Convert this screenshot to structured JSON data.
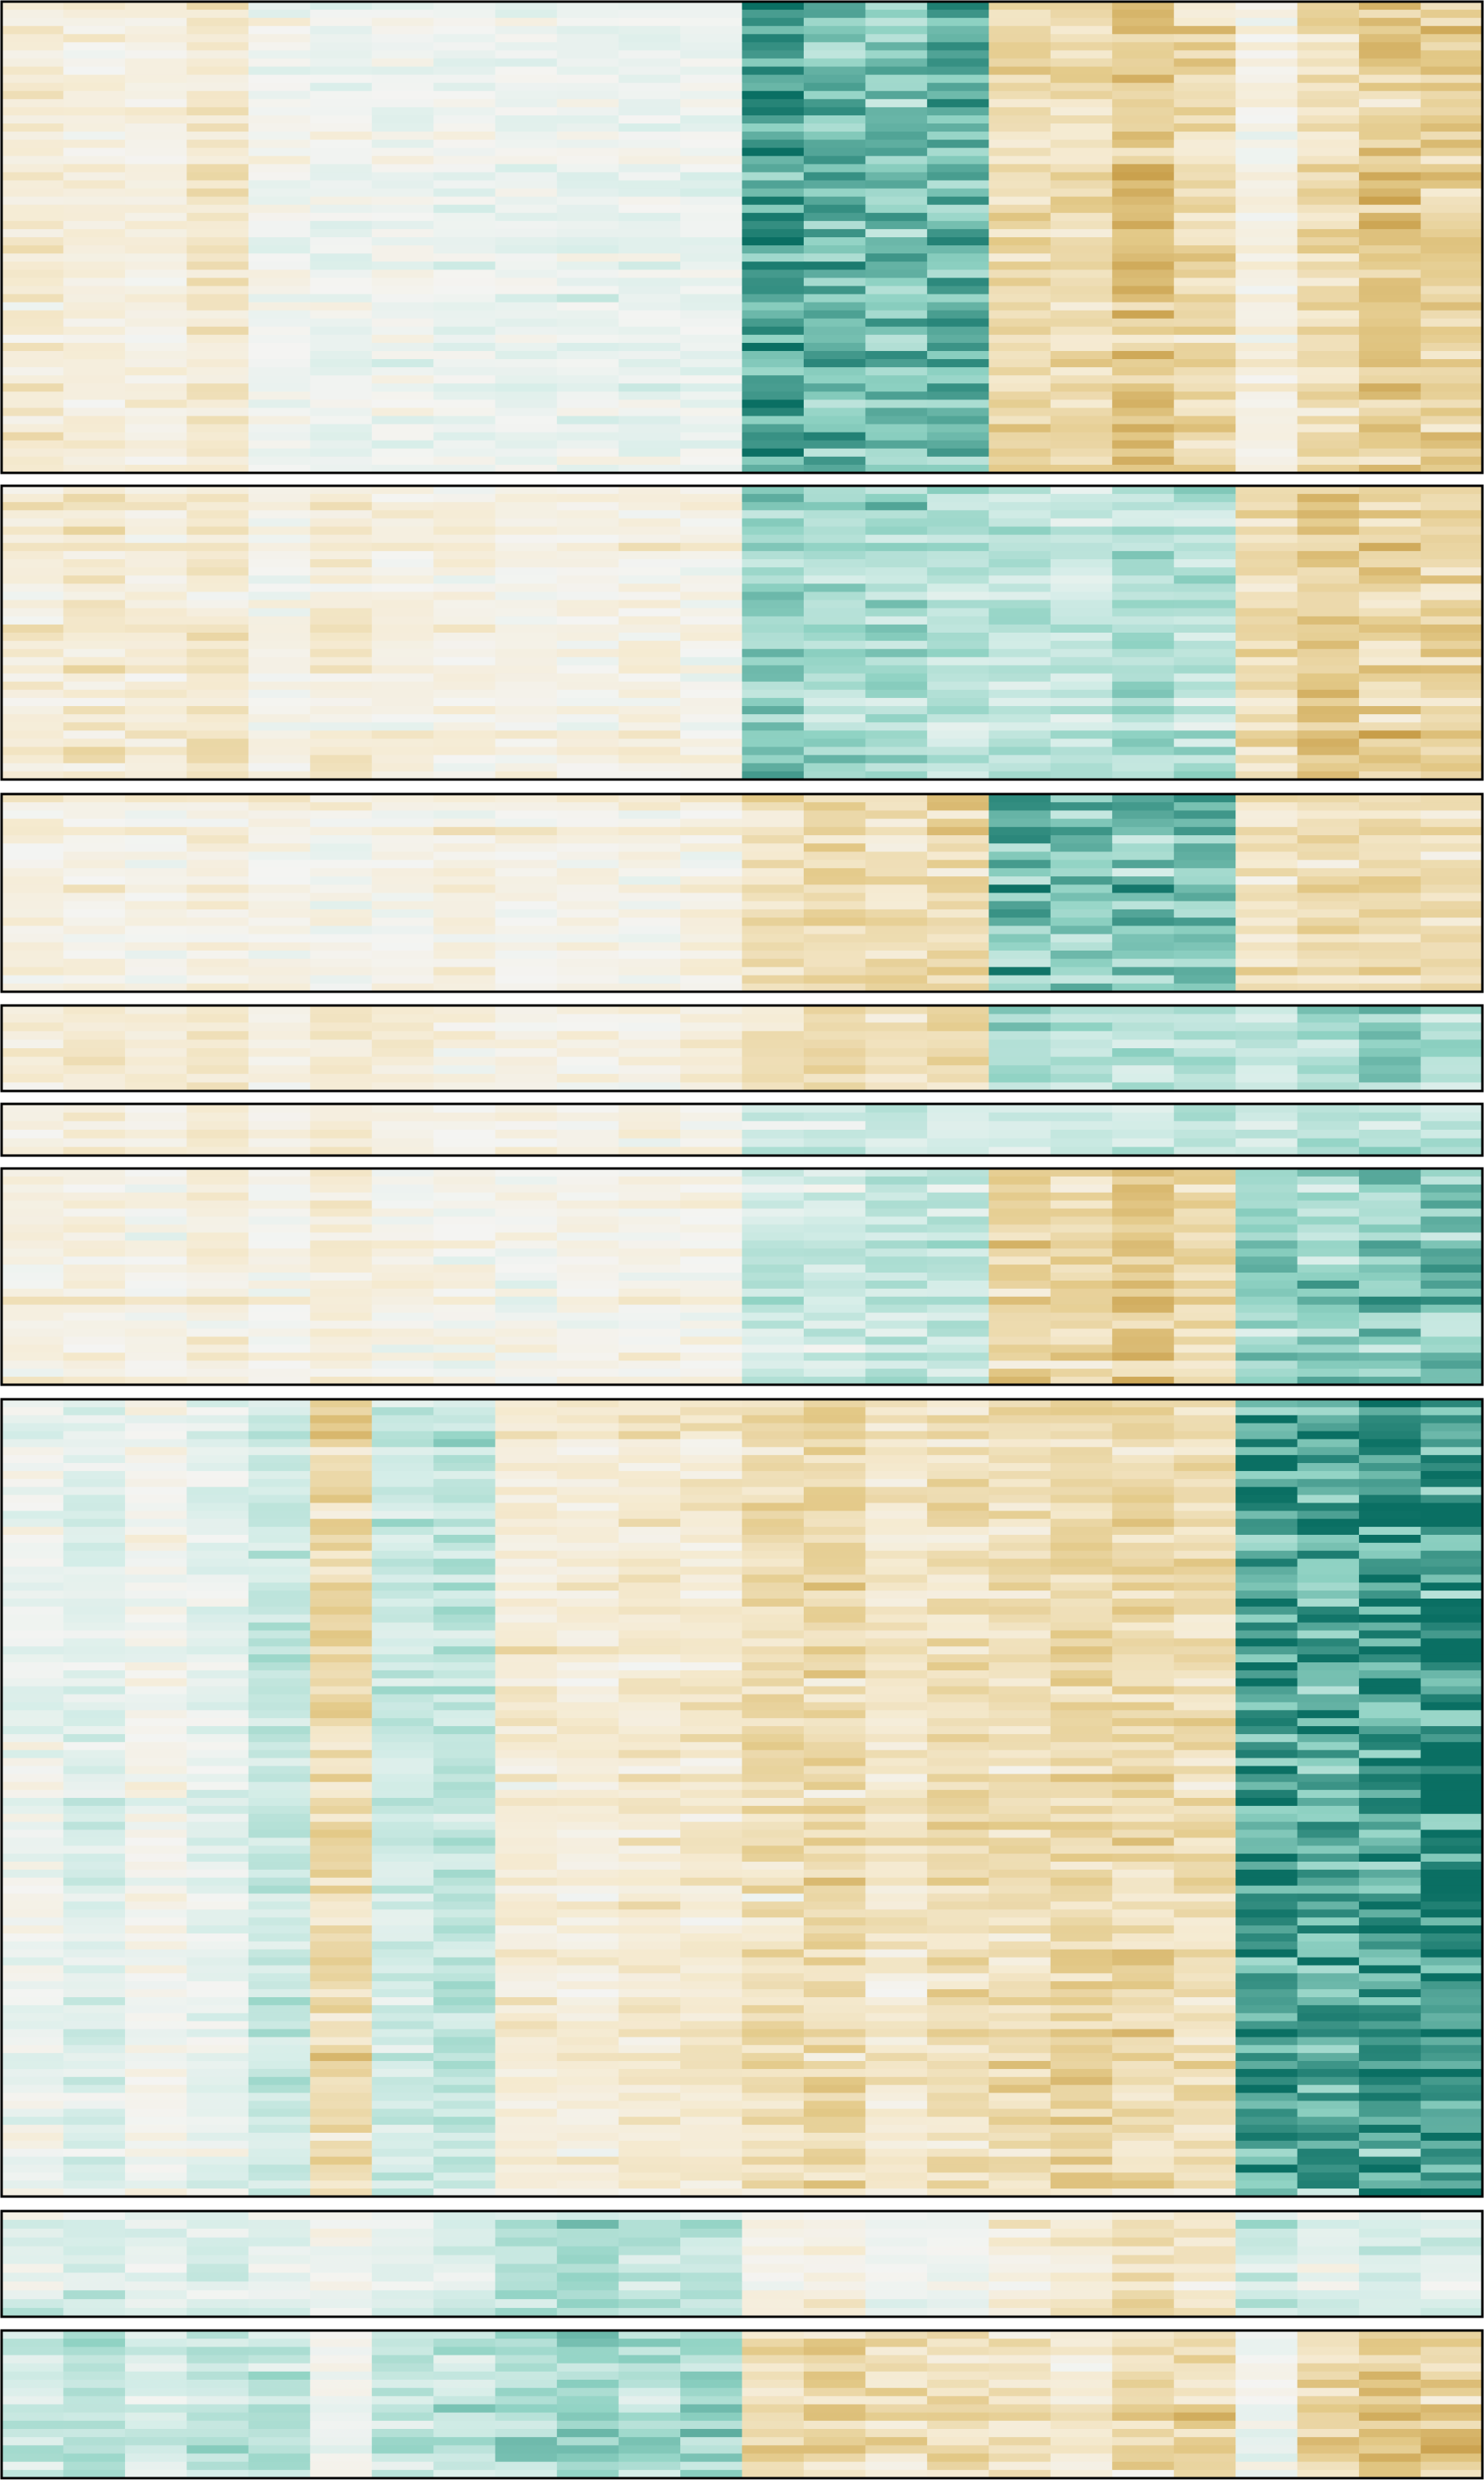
{
  "chart_data": {
    "type": "heatmap",
    "title": "",
    "xlabel": "",
    "ylabel": "",
    "grid": false,
    "legend": "none",
    "n_columns": 24,
    "colormap": {
      "name": "BrBG",
      "value_range": [
        -1,
        1
      ],
      "stops": [
        {
          "value": -1.0,
          "color": "#b37d18"
        },
        {
          "value": -0.5,
          "color": "#e3c988"
        },
        {
          "value": -0.2,
          "color": "#f5ead0"
        },
        {
          "value": 0.0,
          "color": "#f4f4f2"
        },
        {
          "value": 0.2,
          "color": "#d5ede8"
        },
        {
          "value": 0.5,
          "color": "#8fd2c3"
        },
        {
          "value": 1.0,
          "color": "#0a6f63"
        }
      ]
    },
    "clusters": [
      {
        "id": 1,
        "rows": 58,
        "column_means": [
          -0.15,
          -0.1,
          -0.1,
          -0.2,
          0.0,
          0.05,
          0.0,
          0.05,
          0.05,
          0.05,
          0.05,
          0.05,
          0.7,
          0.6,
          0.55,
          0.6,
          -0.35,
          -0.3,
          -0.5,
          -0.35,
          -0.05,
          -0.3,
          -0.45,
          -0.4
        ]
      },
      {
        "id": 2,
        "rows": 36,
        "column_means": [
          -0.15,
          -0.2,
          -0.15,
          -0.2,
          -0.05,
          -0.15,
          -0.1,
          -0.1,
          -0.05,
          -0.05,
          -0.1,
          -0.05,
          0.5,
          0.4,
          0.4,
          0.3,
          0.35,
          0.25,
          0.35,
          0.35,
          -0.3,
          -0.45,
          -0.4,
          -0.4
        ]
      },
      {
        "id": 3,
        "rows": 24,
        "column_means": [
          -0.1,
          -0.1,
          -0.05,
          -0.1,
          -0.05,
          -0.05,
          -0.05,
          -0.1,
          -0.05,
          -0.05,
          -0.05,
          -0.1,
          -0.3,
          -0.35,
          -0.3,
          -0.35,
          0.6,
          0.5,
          0.55,
          0.55,
          -0.25,
          -0.3,
          -0.3,
          -0.3
        ]
      },
      {
        "id": 4,
        "rows": 10,
        "column_means": [
          -0.15,
          -0.2,
          -0.15,
          -0.25,
          -0.05,
          -0.2,
          -0.1,
          -0.05,
          -0.05,
          -0.05,
          -0.05,
          -0.1,
          -0.25,
          -0.35,
          -0.2,
          -0.3,
          0.45,
          0.35,
          0.35,
          0.35,
          0.2,
          0.35,
          0.45,
          0.4
        ]
      },
      {
        "id": 5,
        "rows": 6,
        "column_means": [
          -0.1,
          -0.1,
          -0.1,
          -0.2,
          -0.05,
          -0.15,
          -0.05,
          -0.05,
          -0.1,
          -0.05,
          -0.05,
          -0.05,
          0.25,
          0.25,
          0.2,
          0.2,
          0.2,
          0.25,
          0.3,
          0.25,
          0.25,
          0.4,
          0.35,
          0.3
        ]
      },
      {
        "id": 6,
        "rows": 27,
        "column_means": [
          -0.1,
          -0.1,
          -0.05,
          -0.15,
          -0.05,
          -0.15,
          -0.05,
          -0.05,
          0.0,
          -0.05,
          -0.05,
          -0.05,
          0.25,
          0.25,
          0.3,
          0.25,
          -0.4,
          -0.35,
          -0.5,
          -0.35,
          0.45,
          0.45,
          0.55,
          0.55
        ]
      },
      {
        "id": 7,
        "rows": 100,
        "column_means": [
          0.05,
          0.15,
          0.0,
          0.1,
          0.25,
          -0.35,
          0.25,
          0.3,
          -0.15,
          -0.15,
          -0.2,
          -0.2,
          -0.3,
          -0.35,
          -0.2,
          -0.3,
          -0.3,
          -0.35,
          -0.35,
          -0.3,
          0.75,
          0.7,
          0.8,
          0.85
        ]
      },
      {
        "id": 8,
        "rows": 12,
        "column_means": [
          0.1,
          0.2,
          0.1,
          0.15,
          0.1,
          0.0,
          0.1,
          0.15,
          0.3,
          0.4,
          0.25,
          0.3,
          -0.05,
          -0.1,
          0.05,
          0.05,
          -0.15,
          -0.15,
          -0.25,
          -0.2,
          0.25,
          0.1,
          0.2,
          0.15
        ]
      },
      {
        "id": 9,
        "rows": 18,
        "column_means": [
          0.25,
          0.3,
          0.2,
          0.3,
          0.3,
          0.05,
          0.3,
          0.3,
          0.4,
          0.45,
          0.35,
          0.4,
          -0.3,
          -0.4,
          -0.3,
          -0.35,
          -0.25,
          -0.15,
          -0.35,
          -0.35,
          0.05,
          -0.4,
          -0.5,
          -0.45
        ]
      }
    ]
  }
}
